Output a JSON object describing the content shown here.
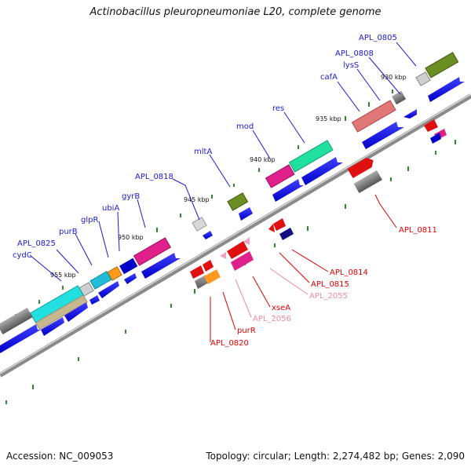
{
  "title": "Actinobacillus pleuropneumoniae L20, complete genome",
  "footer": {
    "accession": "Accession: NC_009053",
    "summary": "Topology: circular; Length: 2,274,482 bp; Genes: 2,090"
  },
  "colors": {
    "forward_gene": "#0000e0",
    "label_upper": "#1a1ad0",
    "label_lower_red": "#dd0000",
    "label_lower_pink": "#f08aa0",
    "backbone": "#8a8a8a",
    "tick_green": "#2e8b2e"
  },
  "scale_ticks": [
    {
      "label": "930 kbp"
    },
    {
      "label": "935 kbp"
    },
    {
      "label": "940 kbp"
    },
    {
      "label": "945 kbp"
    },
    {
      "label": "950 kbp"
    },
    {
      "label": "955 kbp"
    }
  ],
  "gene_labels": [
    {
      "text": "APL_0805",
      "color": "#1a1ad0"
    },
    {
      "text": "APL_0808",
      "color": "#1a1ad0"
    },
    {
      "text": "lysS",
      "color": "#1a1ad0"
    },
    {
      "text": "cafA",
      "color": "#1a1ad0"
    },
    {
      "text": "res",
      "color": "#1a1ad0"
    },
    {
      "text": "mod",
      "color": "#1a1ad0"
    },
    {
      "text": "mltA",
      "color": "#1a1ad0"
    },
    {
      "text": "APL_0818",
      "color": "#1a1ad0"
    },
    {
      "text": "gyrB",
      "color": "#1a1ad0"
    },
    {
      "text": "ubiA",
      "color": "#1a1ad0"
    },
    {
      "text": "glpR",
      "color": "#1a1ad0"
    },
    {
      "text": "purB",
      "color": "#1a1ad0"
    },
    {
      "text": "APL_0825",
      "color": "#1a1ad0"
    },
    {
      "text": "cydC",
      "color": "#1a1ad0"
    },
    {
      "text": "APL_0811",
      "color": "#dd0000"
    },
    {
      "text": "APL_0814",
      "color": "#dd0000"
    },
    {
      "text": "APL_0815",
      "color": "#dd0000"
    },
    {
      "text": "APL_2055",
      "color": "#f08aa0"
    },
    {
      "text": "xseA",
      "color": "#dd0000"
    },
    {
      "text": "APL_2056",
      "color": "#f08aa0"
    },
    {
      "text": "purR",
      "color": "#dd0000"
    },
    {
      "text": "APL_0820",
      "color": "#dd0000"
    }
  ]
}
